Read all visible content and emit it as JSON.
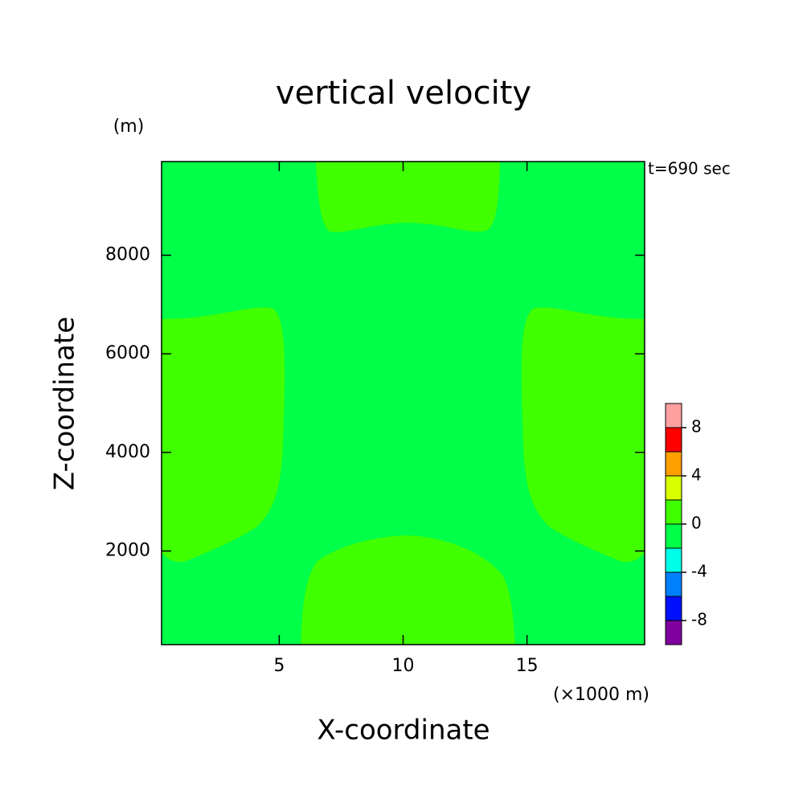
{
  "chart_data": {
    "type": "contour",
    "title": "vertical velocity",
    "xlabel": "X-coordinate",
    "ylabel": "Z-coordinate",
    "x_unit_label": "(×1000 m)",
    "y_unit_label": "(m)",
    "annotation": "t=690 sec",
    "xlim": [
      0.25,
      19.75
    ],
    "xticks": [
      5,
      10,
      15
    ],
    "ylim": [
      100,
      9900
    ],
    "yticks": [
      2000,
      4000,
      6000,
      8000
    ],
    "levels": [
      -10,
      -8,
      -6,
      -4,
      -2,
      0,
      2,
      4,
      6,
      8,
      10
    ],
    "level_colors": [
      "#8000a0",
      "#0010ff",
      "#0080ff",
      "#00ffe8",
      "#00ff48",
      "#40ff00",
      "#d8ff00",
      "#ffa000",
      "#ff0000",
      "#ffa0a0"
    ],
    "colorbar_ticks": [
      -8,
      -4,
      0,
      4,
      8
    ]
  }
}
